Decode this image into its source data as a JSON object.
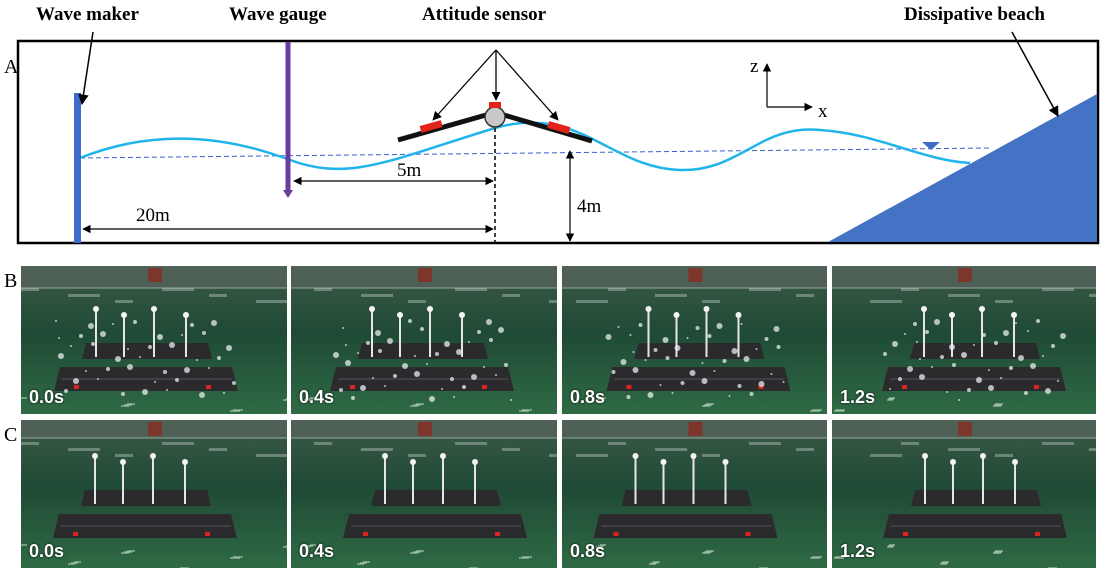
{
  "panel_a": {
    "letter": "A",
    "labels": {
      "wave_maker": "Wave maker",
      "wave_gauge": "Wave gauge",
      "attitude_sensor": "Attitude sensor",
      "dissipative_beach": "Dissipative beach"
    },
    "dimensions": {
      "gauge_distance": "5m",
      "maker_distance": "20m",
      "depth": "4m"
    },
    "axes": {
      "z": "z",
      "x": "x"
    },
    "colors": {
      "wave": "#1fb4ea",
      "still_water_line": "#3a5fd0",
      "wave_maker": "#3e6cc9",
      "wave_gauge": "#6a3c9b",
      "beach": "#4472c4",
      "sensor": "#e2231a",
      "plate": "#111111",
      "buoy": "#c8c8c8"
    }
  },
  "panel_b": {
    "letter": "B",
    "frames": [
      "0.0s",
      "0.4s",
      "0.8s",
      "1.2s"
    ]
  },
  "panel_c": {
    "letter": "C",
    "frames": [
      "0.0s",
      "0.4s",
      "0.8s",
      "1.2s"
    ]
  },
  "photo_colors": {
    "water_top": "#3c5a47",
    "water_mid": "#1f4a35",
    "water_bottom": "#2f6b45",
    "platform": "#2b2b2e",
    "foam": "#e8eef0"
  }
}
